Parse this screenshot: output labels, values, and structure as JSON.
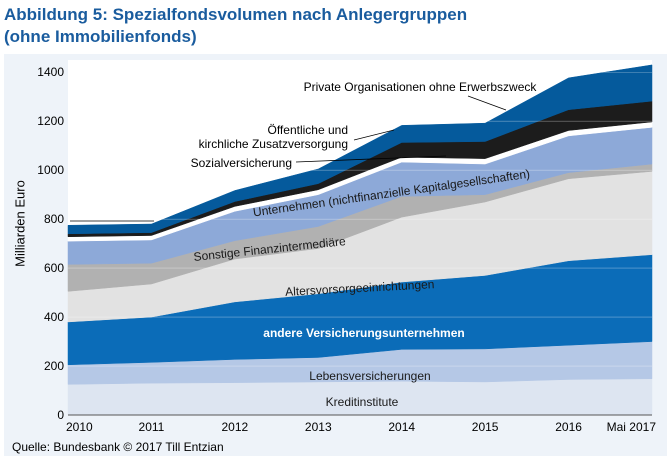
{
  "title_line1": "Abbildung 5: Spezialfondsvolumen nach Anlegergruppen",
  "title_line2": "(ohne Immobilienfonds)",
  "source": "Quelle: Bundesbank © 2017 Till Entzian",
  "chart_data": {
    "type": "area",
    "stacked": true,
    "ylabel": "Milliarden Euro",
    "xlabel": "",
    "ylim": [
      0,
      1450
    ],
    "yticks": [
      0,
      200,
      400,
      600,
      800,
      1000,
      1200,
      1400
    ],
    "x": [
      "2010",
      "2011",
      "2012",
      "2013",
      "2014",
      "2015",
      "2016",
      "Mai 2017"
    ],
    "series": [
      {
        "name": "Kreditinstitute",
        "color": "#dde5f1",
        "values": [
          125,
          130,
          132,
          135,
          138,
          135,
          145,
          148
        ]
      },
      {
        "name": "Lebensversicherungen",
        "color": "#b5c8e6",
        "values": [
          80,
          85,
          95,
          100,
          130,
          135,
          140,
          152
        ]
      },
      {
        "name": "andere Versicherungsunternehmen",
        "color": "#0b6cb8",
        "values": [
          175,
          185,
          235,
          260,
          275,
          300,
          345,
          355
        ]
      },
      {
        "name": "Altersvorsorgeeinrichtungen",
        "color": "#e2e2e2",
        "values": [
          125,
          135,
          175,
          185,
          265,
          300,
          335,
          340
        ]
      },
      {
        "name": "Sonstige Finanzintermediäre",
        "color": "#b1b1b1",
        "values": [
          110,
          85,
          75,
          90,
          85,
          30,
          25,
          30
        ]
      },
      {
        "name": "Unternehmen (nichtfinanzielle Kapitalgesellschaften)",
        "color": "#8da9d8",
        "values": [
          95,
          95,
          120,
          130,
          140,
          125,
          150,
          150
        ]
      },
      {
        "name": "Sozialversicherung",
        "color": "#ffffff",
        "values": [
          18,
          18,
          20,
          20,
          20,
          22,
          22,
          22
        ]
      },
      {
        "name": "Öffentliche und kirchliche Zusatzversorgung",
        "color": "#1c1c1c",
        "values": [
          12,
          12,
          20,
          25,
          60,
          70,
          85,
          85
        ]
      },
      {
        "name": "Private Organisationen ohne Erwerbszweck",
        "color": "#055a9c",
        "values": [
          35,
          35,
          45,
          60,
          70,
          75,
          130,
          148
        ]
      }
    ],
    "annotations": [
      {
        "text": "Private Organisationen ohne Erwerbszweck"
      },
      {
        "text": "Öffentliche und"
      },
      {
        "text": "kirchliche Zusatzversorgung"
      },
      {
        "text": "Sozialversicherung"
      },
      {
        "text": "Unternehmen (nichtfinanzielle Kapitalgesellschaften)"
      },
      {
        "text": "Sonstige Finanzintermediäre"
      },
      {
        "text": "Altersvorsorgeeinrichtungen"
      },
      {
        "text": "andere Versicherungsunternehmen"
      },
      {
        "text": "Lebensversicherungen"
      },
      {
        "text": "Kreditinstitute"
      }
    ]
  }
}
